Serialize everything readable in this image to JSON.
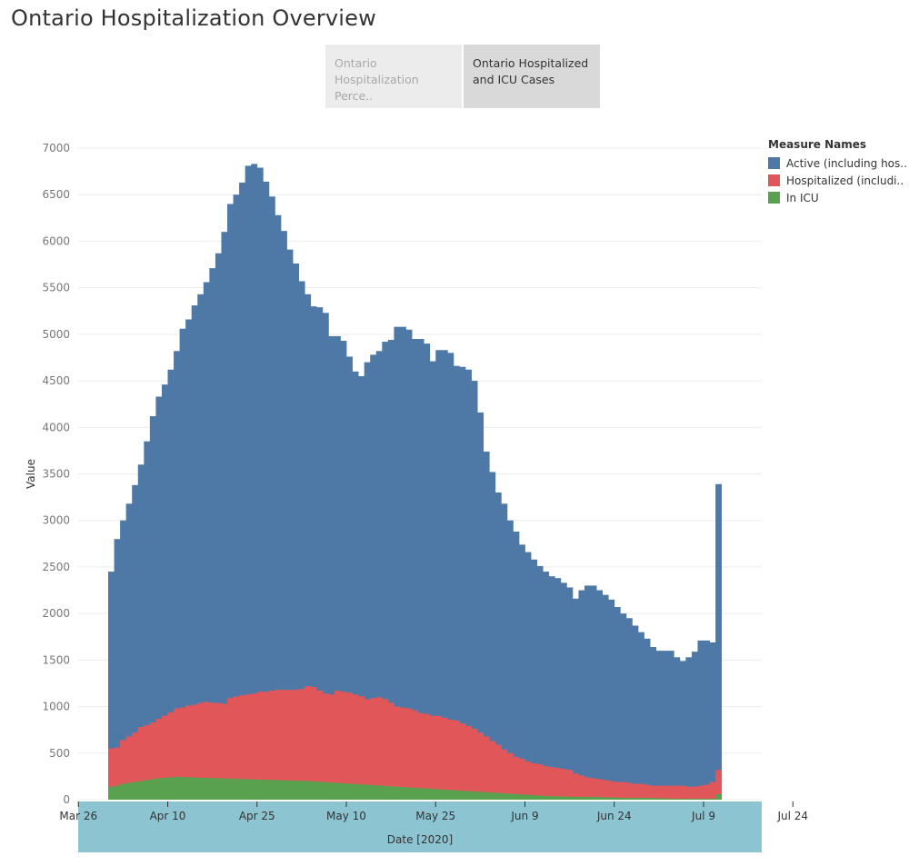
{
  "page": {
    "title": "Ontario Hospitalization Overview"
  },
  "tabs": [
    {
      "label_line1": "Ontario",
      "label_line2": "Hospitalization Perce..",
      "active": false
    },
    {
      "label_line1": "Ontario Hospitalized",
      "label_line2": "and ICU Cases",
      "active": true
    }
  ],
  "legend": {
    "title": "Measure Names",
    "items": [
      {
        "label": "Active (including hos..",
        "color": "#4e79a7"
      },
      {
        "label": "Hospitalized (includi..",
        "color": "#e15759"
      },
      {
        "label": "In ICU",
        "color": "#59a14f"
      }
    ]
  },
  "chart_data": {
    "type": "area",
    "xlabel": "Date [2020]",
    "ylabel": "Value",
    "ylim": [
      0,
      7000
    ],
    "yticks": [
      0,
      500,
      1000,
      1500,
      2000,
      2500,
      3000,
      3500,
      4000,
      4500,
      5000,
      5500,
      6000,
      6500,
      7000
    ],
    "xticks": [
      {
        "label": "Mar 26",
        "date": "2020-03-26"
      },
      {
        "label": "Apr 10",
        "date": "2020-04-10"
      },
      {
        "label": "Apr 25",
        "date": "2020-04-25"
      },
      {
        "label": "May 10",
        "date": "2020-05-10"
      },
      {
        "label": "May 25",
        "date": "2020-05-25"
      },
      {
        "label": "Jun 9",
        "date": "2020-06-09"
      },
      {
        "label": "Jun 24",
        "date": "2020-06-24"
      },
      {
        "label": "Jul 9",
        "date": "2020-07-09"
      },
      {
        "label": "Jul 24",
        "date": "2020-07-24"
      }
    ],
    "x_start": "2020-03-31",
    "grid": true,
    "legend_position": "top-right",
    "series": [
      {
        "name": "Active (including hos..",
        "color": "#4e79a7",
        "values": [
          2450,
          2800,
          3000,
          3180,
          3380,
          3600,
          3850,
          4120,
          4330,
          4460,
          4620,
          4820,
          5060,
          5160,
          5310,
          5430,
          5560,
          5710,
          5870,
          6100,
          6400,
          6500,
          6630,
          6810,
          6830,
          6790,
          6640,
          6480,
          6280,
          6110,
          5910,
          5760,
          5570,
          5430,
          5300,
          5290,
          5230,
          4980,
          4980,
          4930,
          4760,
          4600,
          4550,
          4700,
          4780,
          4820,
          4920,
          4940,
          5080,
          5080,
          5050,
          4950,
          4950,
          4900,
          4710,
          4830,
          4830,
          4800,
          4660,
          4650,
          4620,
          4500,
          4160,
          3740,
          3520,
          3300,
          3180,
          3000,
          2880,
          2740,
          2660,
          2580,
          2510,
          2450,
          2400,
          2380,
          2330,
          2280,
          2160,
          2250,
          2300,
          2300,
          2250,
          2200,
          2150,
          2070,
          2000,
          1950,
          1870,
          1800,
          1730,
          1640,
          1600,
          1600,
          1600,
          1530,
          1490,
          1530,
          1590,
          1710,
          1710,
          1690,
          3390
        ]
      },
      {
        "name": "Hospitalized (includi..",
        "color": "#e15759",
        "values": [
          550,
          560,
          640,
          680,
          720,
          780,
          800,
          830,
          870,
          900,
          940,
          980,
          990,
          1010,
          1020,
          1040,
          1050,
          1040,
          1040,
          1030,
          1090,
          1110,
          1120,
          1130,
          1140,
          1160,
          1160,
          1170,
          1180,
          1180,
          1180,
          1180,
          1190,
          1220,
          1210,
          1170,
          1140,
          1130,
          1170,
          1160,
          1150,
          1130,
          1110,
          1080,
          1090,
          1100,
          1080,
          1040,
          1000,
          990,
          980,
          960,
          930,
          920,
          900,
          900,
          880,
          860,
          850,
          820,
          790,
          760,
          720,
          680,
          630,
          590,
          540,
          500,
          460,
          440,
          410,
          390,
          380,
          360,
          350,
          340,
          330,
          320,
          280,
          260,
          240,
          230,
          220,
          210,
          200,
          190,
          190,
          180,
          170,
          170,
          160,
          150,
          150,
          150,
          150,
          150,
          150,
          140,
          140,
          150,
          160,
          190,
          320
        ]
      },
      {
        "name": "In ICU",
        "color": "#59a14f",
        "values": [
          140,
          150,
          170,
          180,
          190,
          200,
          210,
          220,
          230,
          235,
          240,
          245,
          243,
          240,
          238,
          236,
          234,
          232,
          230,
          228,
          226,
          224,
          222,
          220,
          218,
          216,
          214,
          212,
          210,
          208,
          206,
          204,
          202,
          200,
          196,
          192,
          188,
          184,
          180,
          176,
          172,
          168,
          164,
          160,
          156,
          152,
          148,
          144,
          140,
          136,
          132,
          128,
          124,
          120,
          116,
          112,
          108,
          104,
          100,
          96,
          92,
          88,
          84,
          80,
          76,
          72,
          68,
          64,
          60,
          56,
          52,
          48,
          44,
          40,
          38,
          36,
          34,
          32,
          30,
          30,
          30,
          30,
          28,
          26,
          24,
          22,
          20,
          20,
          20,
          20,
          20,
          18,
          16,
          14,
          12,
          10,
          10,
          10,
          10,
          10,
          10,
          10,
          60
        ]
      }
    ]
  }
}
